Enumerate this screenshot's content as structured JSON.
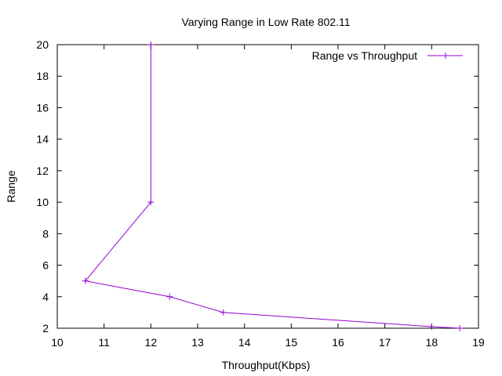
{
  "chart_data": {
    "type": "line",
    "title": "Varying Range in Low Rate 802.11",
    "xlabel": "Throughput(Kbps)",
    "ylabel": "Range",
    "xlim": [
      10,
      19
    ],
    "ylim": [
      2,
      20
    ],
    "xticks": [
      10,
      11,
      12,
      13,
      14,
      15,
      16,
      17,
      18,
      19
    ],
    "yticks": [
      2,
      4,
      6,
      8,
      10,
      12,
      14,
      16,
      18,
      20
    ],
    "grid": false,
    "legend_position": "top-right",
    "series": [
      {
        "name": "Range vs Throughput",
        "color": "#9400d3",
        "marker": "plus",
        "points": [
          {
            "x": 12.0,
            "y": 20
          },
          {
            "x": 12.0,
            "y": 10
          },
          {
            "x": 10.6,
            "y": 5
          },
          {
            "x": 12.4,
            "y": 4
          },
          {
            "x": 13.55,
            "y": 3
          },
          {
            "x": 18.0,
            "y": 2.1
          },
          {
            "x": 18.6,
            "y": 2
          }
        ]
      }
    ]
  }
}
